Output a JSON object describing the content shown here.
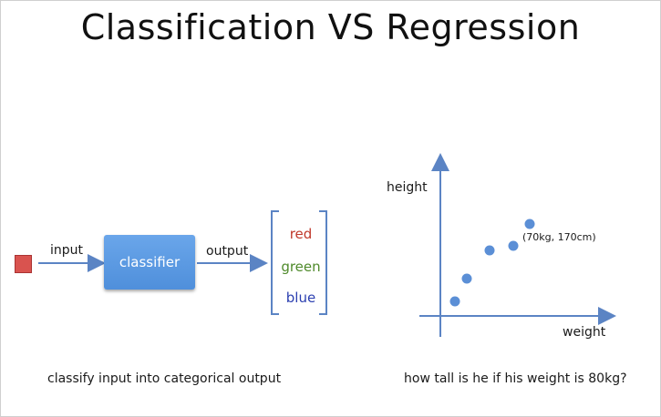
{
  "title": "Classification VS Regression",
  "left": {
    "input_label": "input",
    "classifier_label": "classifier",
    "output_label": "output",
    "categories": [
      {
        "label": "red",
        "color": "#c0392b"
      },
      {
        "label": "green",
        "color": "#4f8a2b"
      },
      {
        "label": "blue",
        "color": "#2b3fb0"
      }
    ],
    "caption": "classify input into categorical output"
  },
  "right": {
    "y_label": "height",
    "x_label": "weight",
    "annotation": "(70kg, 170cm)",
    "caption": "how tall is he if his weight is 80kg?"
  },
  "colors": {
    "arrow": "#5b84c4",
    "point": "#5b8fd6",
    "input_square": "#d9534f"
  }
}
